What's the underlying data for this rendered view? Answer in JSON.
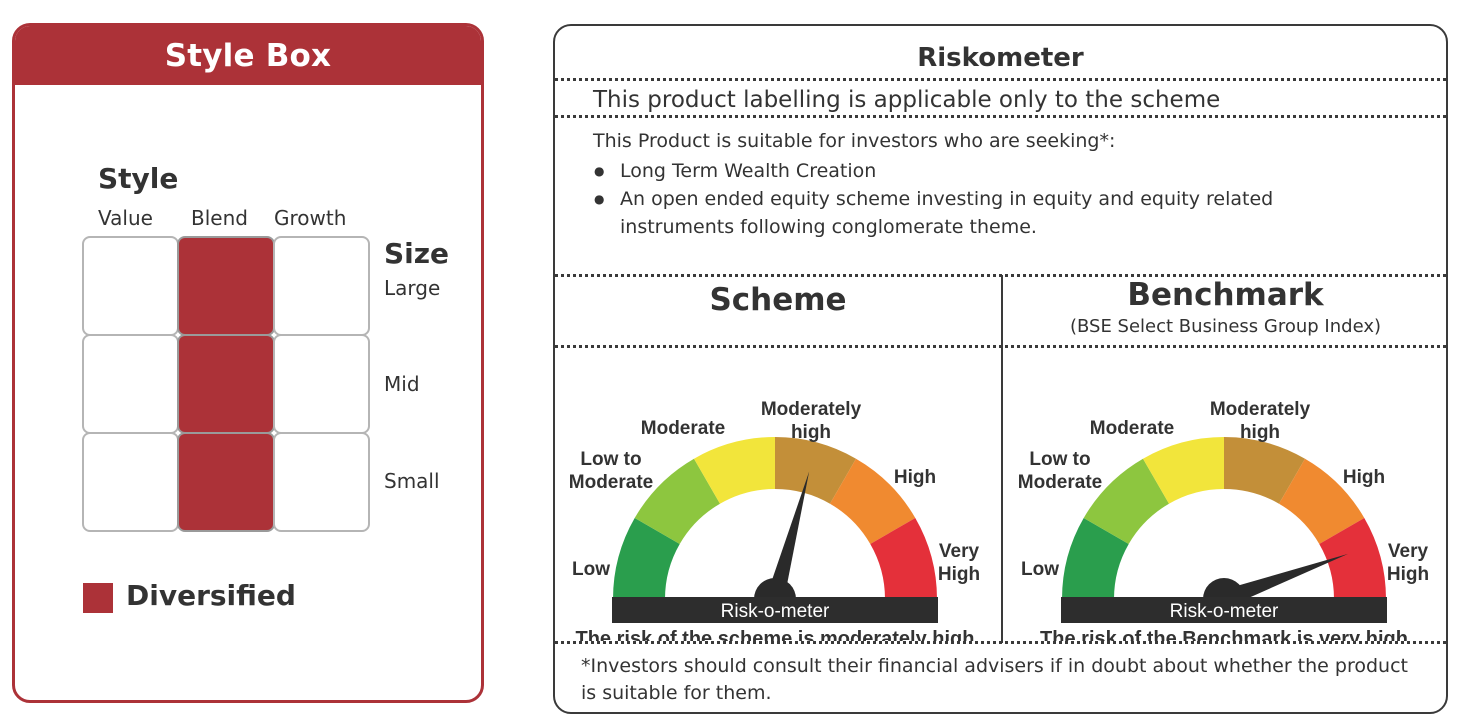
{
  "style_box": {
    "title": "Style Box",
    "style_heading": "Style",
    "columns": [
      "Value",
      "Blend",
      "Growth"
    ],
    "size_heading": "Size",
    "rows": [
      "Large",
      "Mid",
      "Small"
    ],
    "grid": [
      [
        false,
        true,
        false
      ],
      [
        false,
        true,
        false
      ],
      [
        false,
        true,
        false
      ]
    ],
    "legend_label": "Diversified",
    "accent_color": "#ac3238"
  },
  "riskometer": {
    "title": "Riskometer",
    "labelling_note": "This product labelling is applicable only to the scheme",
    "intro": "This Product is suitable for investors who are seeking*:",
    "bullets": [
      "Long Term Wealth Creation",
      "An open ended equity scheme investing in equity and equity related instruments following conglomerate theme."
    ],
    "scheme": {
      "heading": "Scheme",
      "level": "Moderately high",
      "caption": "The risk of the scheme is moderately high"
    },
    "benchmark": {
      "heading": "Benchmark",
      "subheading": "(BSE Select Business Group Index)",
      "level": "Very High",
      "caption": "The risk of the Benchmark is very high"
    },
    "meter_bar_label": "Risk-o-meter",
    "levels": [
      {
        "label": "Low",
        "color": "#2a9e4d"
      },
      {
        "label": "Low to Moderate",
        "color": "#8dc63f"
      },
      {
        "label": "Moderate",
        "color": "#f2e53b"
      },
      {
        "label": "Moderately high",
        "color": "#c38f39"
      },
      {
        "label": "High",
        "color": "#f08a30"
      },
      {
        "label": "Very High",
        "color": "#e4303a"
      }
    ],
    "footnote": "*Investors should consult their financial advisers if in doubt about whether the product is suitable for them."
  }
}
